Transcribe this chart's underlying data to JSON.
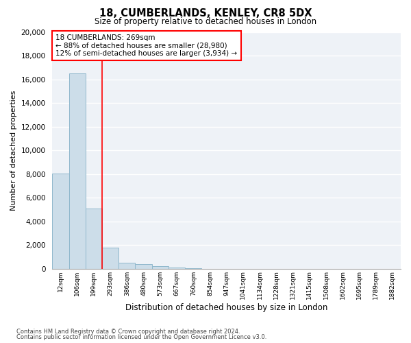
{
  "title": "18, CUMBERLANDS, KENLEY, CR8 5DX",
  "subtitle": "Size of property relative to detached houses in London",
  "xlabel": "Distribution of detached houses by size in London",
  "ylabel": "Number of detached properties",
  "categories": [
    "12sqm",
    "106sqm",
    "199sqm",
    "293sqm",
    "386sqm",
    "480sqm",
    "573sqm",
    "667sqm",
    "760sqm",
    "854sqm",
    "947sqm",
    "1041sqm",
    "1134sqm",
    "1228sqm",
    "1321sqm",
    "1415sqm",
    "1508sqm",
    "1602sqm",
    "1695sqm",
    "1789sqm",
    "1882sqm"
  ],
  "values": [
    8050,
    16500,
    5100,
    1750,
    500,
    370,
    180,
    100,
    55,
    0,
    0,
    0,
    0,
    0,
    0,
    0,
    0,
    0,
    0,
    0,
    0
  ],
  "bar_color": "#ccdde9",
  "bar_edge_color": "#90b8cc",
  "vline_color": "red",
  "vline_x_index": 2,
  "annotation_text": "18 CUMBERLANDS: 269sqm\n← 88% of detached houses are smaller (28,980)\n12% of semi-detached houses are larger (3,934) →",
  "annotation_box_color": "white",
  "annotation_box_edge_color": "red",
  "ylim": [
    0,
    20000
  ],
  "yticks": [
    0,
    2000,
    4000,
    6000,
    8000,
    10000,
    12000,
    14000,
    16000,
    18000,
    20000
  ],
  "background_color": "#eef2f7",
  "grid_color": "white",
  "footer_line1": "Contains HM Land Registry data © Crown copyright and database right 2024.",
  "footer_line2": "Contains public sector information licensed under the Open Government Licence v3.0."
}
